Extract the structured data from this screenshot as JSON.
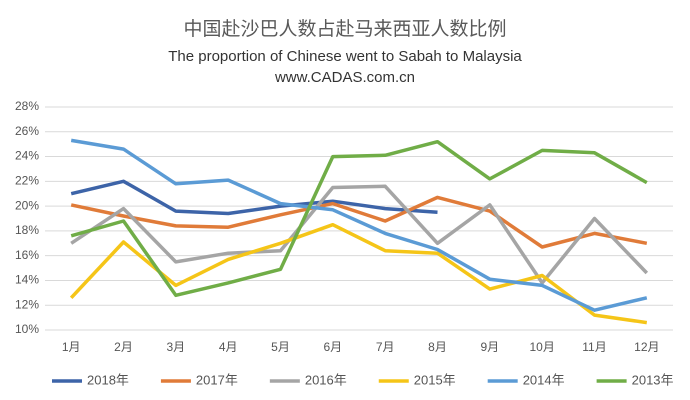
{
  "chart_data": {
    "type": "line",
    "title": "中国赴沙巴人数占赴马来西亚人数比例",
    "subtitle": "The proportion of Chinese went to Sabah to Malaysia",
    "source": "www.CADAS.com.cn",
    "categories": [
      "1月",
      "2月",
      "3月",
      "4月",
      "5月",
      "6月",
      "7月",
      "8月",
      "9月",
      "10月",
      "11月",
      "12月"
    ],
    "series": [
      {
        "name": "2018年",
        "color": "#3d64a8",
        "values": [
          21.0,
          22.0,
          19.6,
          19.4,
          20.0,
          20.4,
          19.8,
          19.5,
          null,
          null,
          null,
          null
        ]
      },
      {
        "name": "2017年",
        "color": "#e07b39",
        "values": [
          20.1,
          19.2,
          18.4,
          18.3,
          19.3,
          20.2,
          18.8,
          20.7,
          19.6,
          16.7,
          17.8,
          17.0
        ]
      },
      {
        "name": "2016年",
        "color": "#a5a5a5",
        "values": [
          17.0,
          19.8,
          15.5,
          16.2,
          16.4,
          21.5,
          21.6,
          17.0,
          20.1,
          13.8,
          19.0,
          14.6
        ]
      },
      {
        "name": "2015年",
        "color": "#f5c518",
        "values": [
          12.6,
          17.1,
          13.6,
          15.7,
          17.0,
          18.5,
          16.4,
          16.2,
          13.3,
          14.4,
          11.2,
          10.6
        ]
      },
      {
        "name": "2014年",
        "color": "#5b9bd5",
        "values": [
          25.3,
          24.6,
          21.8,
          22.1,
          20.2,
          19.7,
          17.8,
          16.5,
          14.1,
          13.6,
          11.6,
          12.6
        ]
      },
      {
        "name": "2013年",
        "color": "#70ad47",
        "values": [
          17.6,
          18.8,
          12.8,
          13.8,
          14.9,
          24.0,
          24.1,
          25.2,
          22.2,
          24.5,
          24.3,
          21.9
        ]
      }
    ],
    "ylim": [
      10,
      28
    ],
    "yticks": [
      {
        "value": 10,
        "label": "10%"
      },
      {
        "value": 12,
        "label": "12%"
      },
      {
        "value": 14,
        "label": "14%"
      },
      {
        "value": 16,
        "label": "16%"
      },
      {
        "value": 18,
        "label": "18%"
      },
      {
        "value": 20,
        "label": "20%"
      },
      {
        "value": 22,
        "label": "22%"
      },
      {
        "value": 24,
        "label": "24%"
      },
      {
        "value": 26,
        "label": "26%"
      },
      {
        "value": 28,
        "label": "28%"
      }
    ],
    "grid": true,
    "legend": "bottom"
  }
}
